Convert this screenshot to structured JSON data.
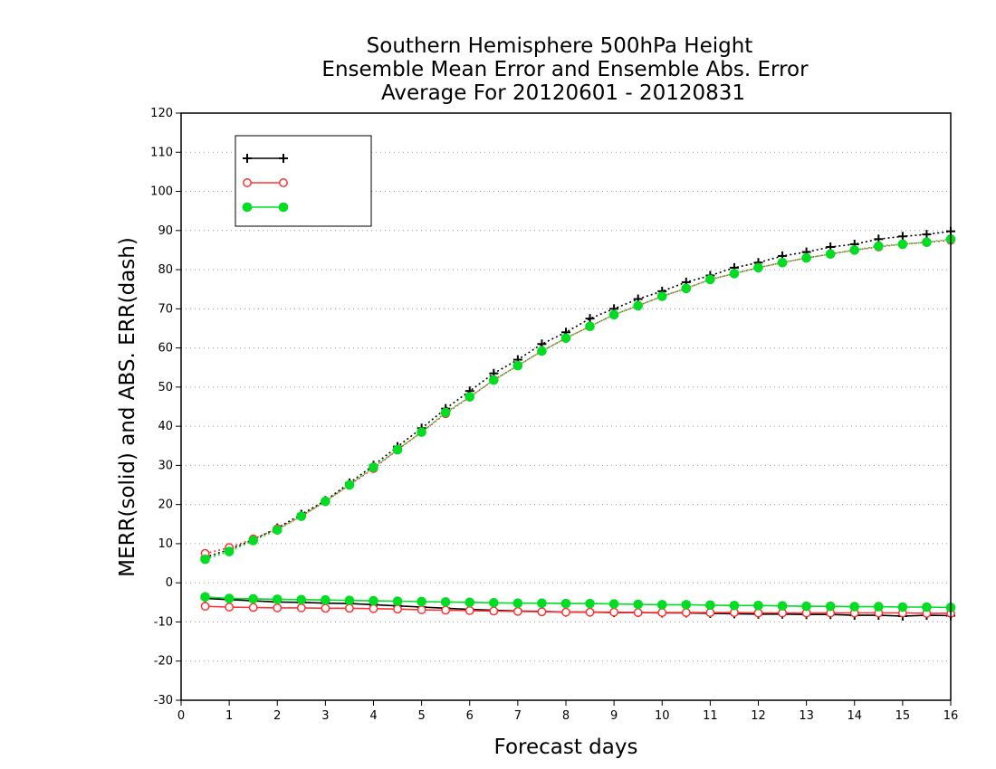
{
  "chart_data": {
    "type": "line",
    "title": [
      "Southern Hemisphere 500hPa Height",
      "Ensemble Mean Error and Ensemble Abs. Error",
      "Average For 20120601 - 20120831"
    ],
    "xlabel": "Forecast days",
    "ylabel": "MERR(solid) and ABS. ERR(dash)",
    "xlim": [
      0,
      16
    ],
    "ylim": [
      -30,
      120
    ],
    "xticks": [
      0,
      1,
      2,
      3,
      4,
      5,
      6,
      7,
      8,
      9,
      10,
      11,
      12,
      13,
      14,
      15,
      16
    ],
    "yticks": [
      -30,
      -20,
      -10,
      0,
      10,
      20,
      30,
      40,
      50,
      60,
      70,
      80,
      90,
      100,
      110,
      120
    ],
    "ytick_labels": [
      "-30",
      "-20",
      "-10",
      "0",
      "10",
      "20",
      "30",
      "40",
      "50",
      "60",
      "70",
      "80",
      "90",
      "100",
      "110",
      "120"
    ],
    "grid": "horizontal dotted",
    "legend_position": "top-left",
    "x": [
      0.5,
      1,
      1.5,
      2,
      2.5,
      3,
      3.5,
      4,
      4.5,
      5,
      5.5,
      6,
      6.5,
      7,
      7.5,
      8,
      8.5,
      9,
      9.5,
      10,
      10.5,
      11,
      11.5,
      12,
      12.5,
      13,
      13.5,
      14,
      14.5,
      15,
      15.5,
      16
    ],
    "series": [
      {
        "color": "#000000",
        "marker": "plus",
        "abs_error": [
          6.5,
          8.5,
          11.0,
          14.0,
          17.5,
          21.0,
          25.5,
          30.0,
          34.8,
          39.5,
          44.5,
          49.0,
          53.5,
          57.0,
          61.0,
          64.0,
          67.5,
          70.0,
          72.5,
          74.5,
          76.8,
          78.5,
          80.5,
          81.8,
          83.5,
          84.5,
          85.8,
          86.5,
          87.8,
          88.5,
          89.0,
          89.8
        ],
        "mean_error": [
          -4.0,
          -4.3,
          -4.6,
          -4.9,
          -5.0,
          -5.2,
          -5.3,
          -5.6,
          -5.9,
          -6.2,
          -6.5,
          -6.8,
          -7.0,
          -7.2,
          -7.3,
          -7.5,
          -7.5,
          -7.6,
          -7.6,
          -7.7,
          -7.7,
          -7.8,
          -7.9,
          -8.0,
          -8.0,
          -8.1,
          -8.1,
          -8.3,
          -8.3,
          -8.5,
          -8.3,
          -8.4
        ]
      },
      {
        "color": "#ff3333",
        "marker": "open-circle",
        "abs_error": [
          7.5,
          9.0,
          11.2,
          13.8,
          17.0,
          20.8,
          25.0,
          29.2,
          34.0,
          38.5,
          43.2,
          47.5,
          51.8,
          55.5,
          59.2,
          62.5,
          65.5,
          68.5,
          70.8,
          73.2,
          75.2,
          77.5,
          79.0,
          80.5,
          81.8,
          83.0,
          84.0,
          85.0,
          85.8,
          86.5,
          87.0,
          87.5
        ],
        "mean_error": [
          -6.0,
          -6.2,
          -6.3,
          -6.4,
          -6.4,
          -6.5,
          -6.5,
          -6.6,
          -6.7,
          -6.9,
          -7.0,
          -7.1,
          -7.2,
          -7.3,
          -7.4,
          -7.5,
          -7.5,
          -7.5,
          -7.6,
          -7.6,
          -7.6,
          -7.6,
          -7.6,
          -7.7,
          -7.7,
          -7.7,
          -7.7,
          -7.7,
          -7.7,
          -7.7,
          -7.8,
          -7.8
        ]
      },
      {
        "color": "#00dd22",
        "marker": "filled-circle",
        "abs_error": [
          6.0,
          8.0,
          10.8,
          13.5,
          17.0,
          20.8,
          25.0,
          29.5,
          34.0,
          38.5,
          43.5,
          47.5,
          51.8,
          55.5,
          59.2,
          62.5,
          65.5,
          68.5,
          70.8,
          73.2,
          75.2,
          77.5,
          79.0,
          80.5,
          81.8,
          83.0,
          84.0,
          85.0,
          86.0,
          86.5,
          87.0,
          87.8
        ],
        "mean_error": [
          -3.6,
          -4.0,
          -4.1,
          -4.2,
          -4.3,
          -4.4,
          -4.5,
          -4.6,
          -4.7,
          -4.8,
          -4.9,
          -5.0,
          -5.1,
          -5.2,
          -5.2,
          -5.3,
          -5.3,
          -5.4,
          -5.5,
          -5.6,
          -5.6,
          -5.7,
          -5.8,
          -5.8,
          -5.9,
          -6.0,
          -6.0,
          -6.1,
          -6.1,
          -6.2,
          -6.2,
          -6.3
        ]
      }
    ]
  }
}
